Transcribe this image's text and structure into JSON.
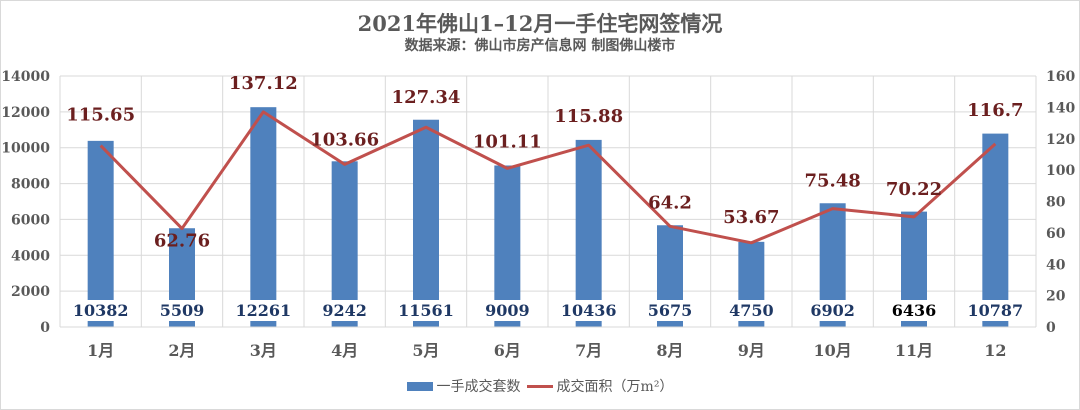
{
  "header": {
    "title": "2021年佛山1–12月一手住宅网签情况",
    "subtitle": "数据来源：佛山市房产信息网    制图佛山楼市"
  },
  "legend": {
    "bar_label": "一手成交套数",
    "line_label": "成交面积（万m²）"
  },
  "colors": {
    "bar": "#4f81bd",
    "line": "#c0504d",
    "bar_label": "#1f3864",
    "line_label": "#6b1f1f",
    "grid": "#d9d9d9",
    "axis_text": "#595959"
  },
  "chart_data": {
    "type": "bar+line",
    "title": "2021年佛山1–12月一手住宅网签情况",
    "subtitle": "数据来源：佛山市房产信息网    制图佛山楼市",
    "categories": [
      "1月",
      "2月",
      "3月",
      "4月",
      "5月",
      "6月",
      "7月",
      "8月",
      "9月",
      "10月",
      "11月",
      "12"
    ],
    "series": [
      {
        "name": "一手成交套数",
        "type": "bar",
        "axis": "left",
        "values": [
          10382,
          5509,
          12261,
          9242,
          11561,
          9009,
          10436,
          5675,
          4750,
          6902,
          6436,
          10787
        ]
      },
      {
        "name": "成交面积（万m²）",
        "type": "line",
        "axis": "right",
        "values": [
          115.65,
          62.76,
          137.12,
          103.66,
          127.34,
          101.11,
          115.88,
          64.2,
          53.67,
          75.48,
          70.22,
          116.7
        ]
      }
    ],
    "y_left": {
      "ticks": [
        0,
        2000,
        4000,
        6000,
        8000,
        10000,
        12000,
        14000
      ],
      "ylim": [
        0,
        14000
      ]
    },
    "y_right": {
      "ticks": [
        0,
        20,
        40,
        60,
        80,
        100,
        120,
        140,
        160
      ],
      "ylim": [
        0,
        160
      ]
    },
    "grid": true,
    "legend_position": "bottom"
  }
}
